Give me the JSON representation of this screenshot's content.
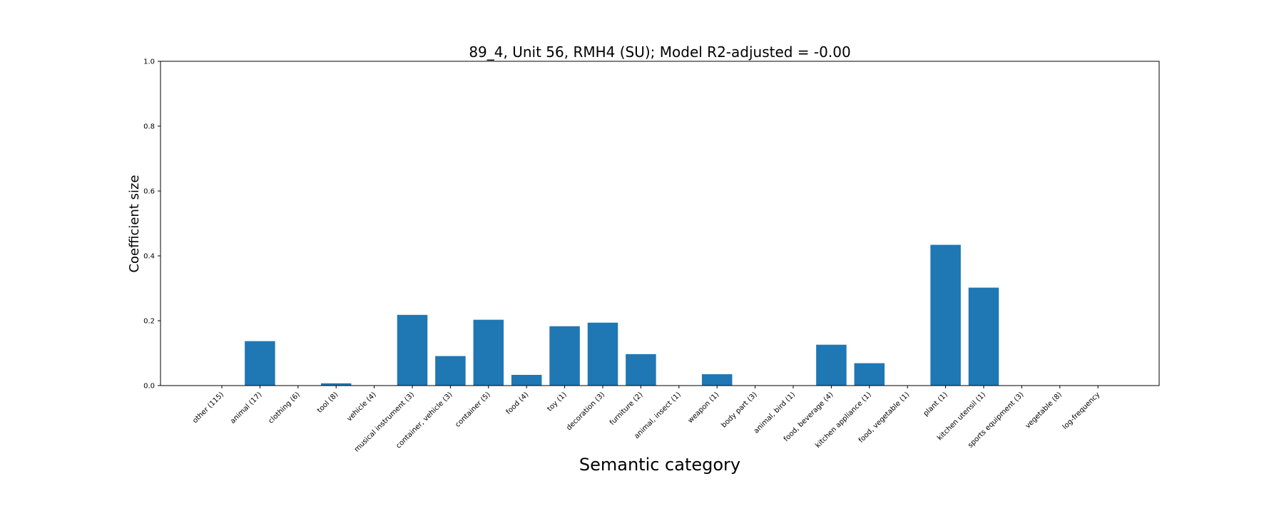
{
  "chart_data": {
    "type": "bar",
    "title": "89_4, Unit 56, RMH4 (SU); Model R2-adjusted = -0.00",
    "xlabel": "Semantic category",
    "ylabel": "Coefficient size",
    "ylim": [
      0,
      1.0
    ],
    "yticks": [
      "0.0",
      "0.2",
      "0.4",
      "0.6",
      "0.8",
      "1.0"
    ],
    "grid": false,
    "bar_color": "#1f77b4",
    "categories": [
      "other (115)",
      "animal (17)",
      "clothing (6)",
      "tool (8)",
      "vehicle (4)",
      "musical instrument (3)",
      "container, vehicle (3)",
      "container (5)",
      "food (4)",
      "toy (1)",
      "decoration (3)",
      "furniture (2)",
      "animal, insect (1)",
      "weapon (1)",
      "body part (3)",
      "animal, bird (1)",
      "food, beverage (4)",
      "kitchen appliance (1)",
      "food, vegetable (1)",
      "plant (1)",
      "kitchen utensil (1)",
      "sports equipment (3)",
      "vegetable (8)",
      "log-frequency"
    ],
    "values": [
      0.0,
      0.137,
      0.0,
      0.007,
      0.0,
      0.218,
      0.091,
      0.203,
      0.033,
      0.183,
      0.194,
      0.097,
      0.0,
      0.035,
      0.0,
      0.0,
      0.126,
      0.069,
      0.0,
      0.434,
      0.302,
      0.0,
      0.0,
      0.0
    ]
  }
}
